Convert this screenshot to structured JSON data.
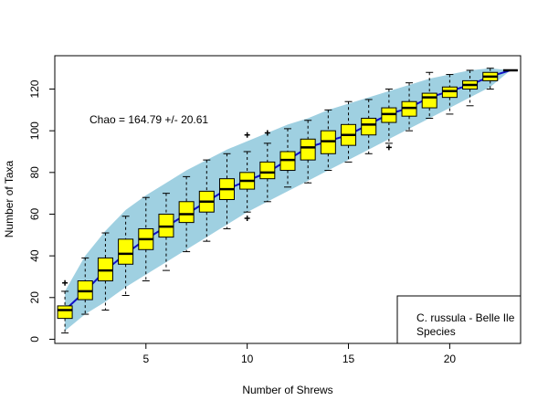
{
  "chart_data": {
    "type": "boxplot",
    "title": "",
    "xlabel": "Number of Shrews",
    "ylabel": "Number of Taxa",
    "xlim": [
      0.5,
      23.5
    ],
    "ylim": [
      -2,
      136
    ],
    "x_ticks": [
      5,
      10,
      15,
      20
    ],
    "y_ticks": [
      0,
      20,
      40,
      60,
      80,
      100,
      120
    ],
    "annotation": "Chao = 164.79 +/- 20.61",
    "legend": {
      "placement": "bottom-right",
      "lines": [
        "C. russula - Belle Ile",
        "Species"
      ]
    },
    "colors": {
      "band": "#9fd0e1",
      "box": "#ffff00",
      "mean_line": "#1010c8",
      "outlier": "#000000"
    },
    "boxes": [
      {
        "x": 1,
        "lower_whisker": 3,
        "q1": 10,
        "median": 14,
        "q3": 16,
        "upper_whisker": 23,
        "outliers": [
          27
        ]
      },
      {
        "x": 2,
        "lower_whisker": 12,
        "q1": 19,
        "median": 23,
        "q3": 28,
        "upper_whisker": 39,
        "outliers": []
      },
      {
        "x": 3,
        "lower_whisker": 14,
        "q1": 28,
        "median": 33,
        "q3": 39,
        "upper_whisker": 51,
        "outliers": []
      },
      {
        "x": 4,
        "lower_whisker": 21,
        "q1": 36,
        "median": 41,
        "q3": 48,
        "upper_whisker": 59,
        "outliers": []
      },
      {
        "x": 5,
        "lower_whisker": 28,
        "q1": 43,
        "median": 48,
        "q3": 53,
        "upper_whisker": 68,
        "outliers": []
      },
      {
        "x": 6,
        "lower_whisker": 33,
        "q1": 49,
        "median": 54,
        "q3": 60,
        "upper_whisker": 70,
        "outliers": []
      },
      {
        "x": 7,
        "lower_whisker": 42,
        "q1": 56,
        "median": 60,
        "q3": 66,
        "upper_whisker": 78,
        "outliers": []
      },
      {
        "x": 8,
        "lower_whisker": 47,
        "q1": 61,
        "median": 66,
        "q3": 71,
        "upper_whisker": 86,
        "outliers": []
      },
      {
        "x": 9,
        "lower_whisker": 53,
        "q1": 67,
        "median": 72,
        "q3": 77,
        "upper_whisker": 89,
        "outliers": []
      },
      {
        "x": 10,
        "lower_whisker": 61,
        "q1": 72,
        "median": 76,
        "q3": 80,
        "upper_whisker": 90,
        "outliers": [
          58,
          98
        ]
      },
      {
        "x": 11,
        "lower_whisker": 66,
        "q1": 77,
        "median": 80,
        "q3": 85,
        "upper_whisker": 94,
        "outliers": [
          99
        ]
      },
      {
        "x": 12,
        "lower_whisker": 73,
        "q1": 81,
        "median": 86,
        "q3": 90,
        "upper_whisker": 101,
        "outliers": []
      },
      {
        "x": 13,
        "lower_whisker": 75,
        "q1": 86,
        "median": 92,
        "q3": 96,
        "upper_whisker": 105,
        "outliers": []
      },
      {
        "x": 14,
        "lower_whisker": 81,
        "q1": 89,
        "median": 95,
        "q3": 100,
        "upper_whisker": 110,
        "outliers": []
      },
      {
        "x": 15,
        "lower_whisker": 85,
        "q1": 93,
        "median": 98,
        "q3": 103,
        "upper_whisker": 114,
        "outliers": []
      },
      {
        "x": 16,
        "lower_whisker": 89,
        "q1": 98,
        "median": 103,
        "q3": 106,
        "upper_whisker": 115,
        "outliers": []
      },
      {
        "x": 17,
        "lower_whisker": 94,
        "q1": 104,
        "median": 108,
        "q3": 111,
        "upper_whisker": 120,
        "outliers": [
          92
        ]
      },
      {
        "x": 18,
        "lower_whisker": 100,
        "q1": 107,
        "median": 111,
        "q3": 114,
        "upper_whisker": 123,
        "outliers": []
      },
      {
        "x": 19,
        "lower_whisker": 106,
        "q1": 111,
        "median": 116,
        "q3": 118,
        "upper_whisker": 128,
        "outliers": []
      },
      {
        "x": 20,
        "lower_whisker": 108,
        "q1": 116,
        "median": 119,
        "q3": 121,
        "upper_whisker": 127,
        "outliers": []
      },
      {
        "x": 21,
        "lower_whisker": 112,
        "q1": 120,
        "median": 122,
        "q3": 124,
        "upper_whisker": 129,
        "outliers": []
      },
      {
        "x": 22,
        "lower_whisker": 120,
        "q1": 124,
        "median": 126,
        "q3": 128,
        "upper_whisker": 130,
        "outliers": []
      },
      {
        "x": 23,
        "lower_whisker": 129,
        "q1": 129,
        "median": 129,
        "q3": 129,
        "upper_whisker": 129,
        "outliers": []
      }
    ],
    "band": {
      "x": [
        1,
        2,
        3,
        4,
        5,
        6,
        7,
        8,
        9,
        10,
        11,
        12,
        13,
        14,
        15,
        16,
        17,
        18,
        19,
        20,
        21,
        22,
        23
      ],
      "lower": [
        4,
        12,
        18,
        25,
        31,
        37,
        43,
        49,
        55,
        61,
        66,
        71,
        76,
        81,
        86,
        91,
        96,
        101,
        106,
        111,
        116,
        121,
        129
      ],
      "upper": [
        23,
        40,
        52,
        62,
        69,
        75,
        81,
        86,
        91,
        95,
        99,
        103,
        106,
        110,
        113,
        116,
        119,
        122,
        125,
        127,
        129,
        130,
        129
      ]
    }
  }
}
